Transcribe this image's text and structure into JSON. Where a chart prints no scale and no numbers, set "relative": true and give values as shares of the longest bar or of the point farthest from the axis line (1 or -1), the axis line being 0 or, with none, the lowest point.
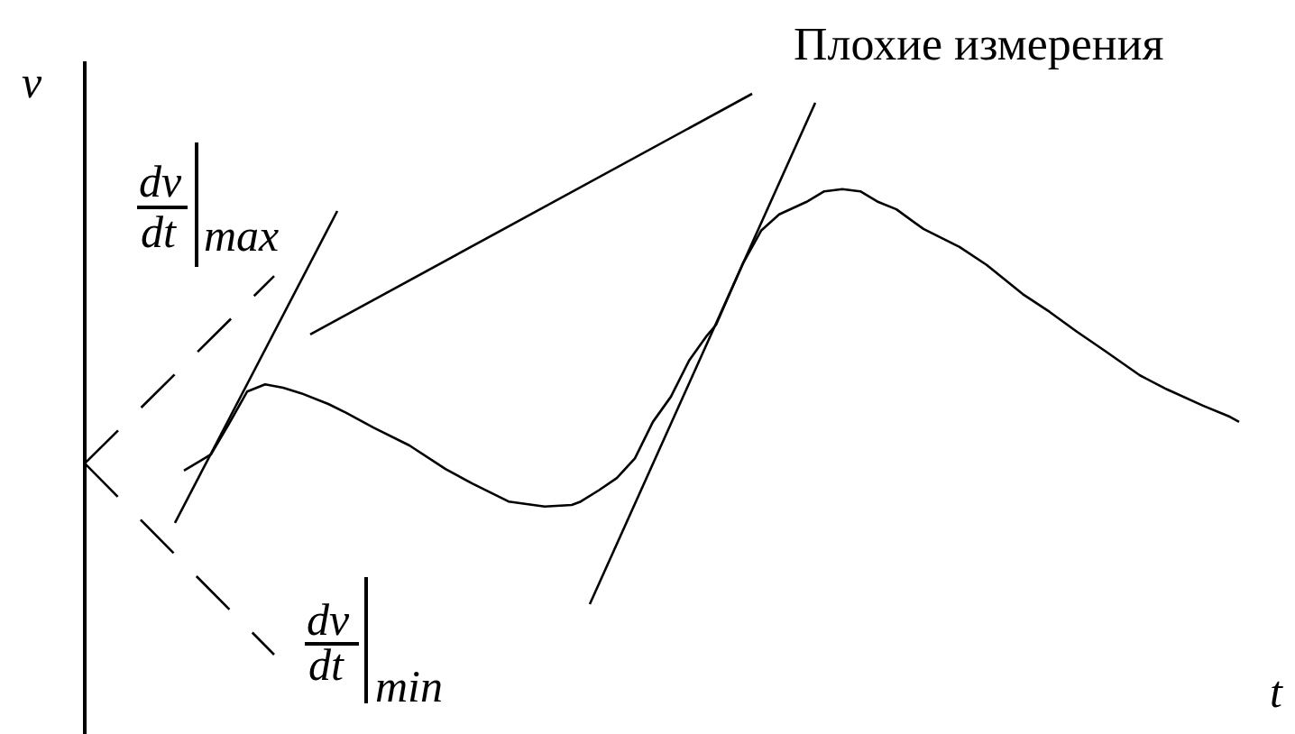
{
  "chart_data": {
    "type": "line",
    "relative": true,
    "xlabel": "t",
    "ylabel": "v",
    "marker": "none",
    "tick_labels": false,
    "categories": [
      null,
      null,
      null,
      null,
      null,
      null,
      null,
      null,
      null,
      null,
      null,
      null,
      null,
      null,
      null,
      null,
      null,
      null,
      null,
      null,
      null,
      null,
      null,
      null,
      null,
      null,
      null,
      null,
      null,
      null,
      null,
      null,
      null,
      null,
      null,
      null,
      null,
      null,
      null,
      null,
      null,
      null,
      null,
      null,
      null,
      null,
      null,
      null,
      null,
      null,
      null,
      null,
      null,
      null,
      null,
      null,
      null,
      null,
      null,
      null,
      null,
      null,
      null,
      null,
      null,
      null,
      null,
      null,
      null,
      null,
      null,
      null,
      null,
      null,
      null,
      null,
      null,
      null,
      null,
      null,
      null,
      null,
      null,
      null,
      null,
      null,
      null,
      null,
      null,
      null,
      null,
      null,
      null,
      null,
      null,
      null,
      null,
      null,
      null,
      null,
      null,
      null,
      null,
      null,
      null,
      null,
      null,
      null,
      null,
      null,
      null,
      null,
      null,
      null,
      null,
      null,
      null,
      null,
      null,
      null,
      null,
      null,
      null,
      null,
      null,
      null,
      null,
      null,
      null
    ],
    "series": [
      {
        "color": "#000000",
        "values": [
          null,
          null,
          null,
          null,
          null,
          null,
          null,
          null,
          null,
          null,
          null,
          0.328,
          null,
          null,
          0.357,
          null,
          0.412,
          null,
          0.469,
          null,
          0.482,
          null,
          0.476,
          null,
          0.466,
          null,
          null,
          0.447,
          null,
          0.431,
          null,
          null,
          0.405,
          null,
          null,
          null,
          0.373,
          null,
          null,
          null,
          0.331,
          null,
          null,
          0.305,
          null,
          null,
          null,
          0.273,
          null,
          null,
          null,
          0.264,
          null,
          null,
          0.267,
          0.273,
          null,
          0.293,
          null,
          0.315,
          null,
          0.35,
          null,
          0.415,
          null,
          0.46,
          null,
          0.524,
          null,
          0.569,
          0.588,
          null,
          null,
          0.698,
          null,
          0.756,
          null,
          0.785,
          null,
          null,
          0.807,
          null,
          0.826,
          null,
          0.83,
          null,
          0.826,
          null,
          0.807,
          null,
          0.794,
          null,
          null,
          0.759,
          null,
          null,
          null,
          0.727,
          null,
          null,
          0.695,
          null,
          null,
          null,
          0.643,
          null,
          null,
          0.611,
          null,
          null,
          0.576,
          null,
          null,
          0.543,
          null,
          null,
          null,
          0.498,
          null,
          null,
          0.473,
          null,
          null,
          null,
          0.444,
          null,
          null,
          0.424,
          0.415
        ]
      },
      {
        "color": "#000000",
        "values": [
          null,
          null,
          null,
          null,
          null,
          null,
          null,
          null,
          null,
          null,
          0.235,
          null,
          null,
          null,
          null,
          null,
          null,
          null,
          null,
          null,
          null,
          null,
          null,
          null,
          null,
          null,
          null,
          null,
          0.791,
          null,
          null,
          null,
          null,
          null,
          null,
          null,
          null,
          null,
          null,
          null,
          null,
          null,
          null,
          null,
          null,
          null,
          null,
          null,
          null,
          null,
          null,
          null,
          null,
          null,
          null,
          null,
          null,
          null,
          null,
          null,
          null,
          null,
          null,
          null,
          null,
          null,
          null,
          null,
          null,
          null,
          null,
          null,
          null,
          null,
          null,
          null,
          null,
          null,
          null,
          null,
          null,
          null,
          null,
          null,
          null,
          null,
          null,
          null,
          null,
          null,
          null,
          null,
          null,
          null,
          null,
          null,
          null,
          null,
          null,
          null,
          null,
          null,
          null,
          null,
          null,
          null,
          null,
          null,
          null,
          null,
          null,
          null,
          null,
          null,
          null,
          null,
          null,
          null,
          null,
          null,
          null,
          null,
          null,
          null,
          null,
          null,
          null,
          null,
          null
        ]
      },
      {
        "color": "#000000",
        "values": [
          null,
          null,
          null,
          null,
          null,
          null,
          null,
          null,
          null,
          null,
          null,
          null,
          null,
          null,
          null,
          null,
          null,
          null,
          null,
          null,
          null,
          null,
          null,
          null,
          null,
          0.571,
          null,
          null,
          null,
          null,
          null,
          null,
          null,
          null,
          null,
          null,
          null,
          null,
          null,
          null,
          null,
          null,
          null,
          null,
          null,
          null,
          null,
          null,
          null,
          null,
          null,
          null,
          null,
          null,
          null,
          null,
          null,
          null,
          null,
          null,
          null,
          null,
          null,
          null,
          null,
          null,
          null,
          null,
          null,
          null,
          null,
          null,
          null,
          null,
          1,
          null,
          null,
          null,
          null,
          null,
          null,
          null,
          null,
          null,
          null,
          null,
          null,
          null,
          null,
          null,
          null,
          null,
          null,
          null,
          null,
          null,
          null,
          null,
          null,
          null,
          null,
          null,
          null,
          null,
          null,
          null,
          null,
          null,
          null,
          null,
          null,
          null,
          null,
          null,
          null,
          null,
          null,
          null,
          null,
          null,
          null,
          null,
          null,
          null,
          null,
          null,
          null,
          null,
          null
        ]
      },
      {
        "color": "#000000",
        "values": [
          null,
          null,
          null,
          null,
          null,
          null,
          null,
          null,
          null,
          null,
          null,
          null,
          null,
          null,
          null,
          null,
          null,
          null,
          null,
          null,
          null,
          null,
          null,
          null,
          null,
          null,
          null,
          null,
          null,
          null,
          null,
          null,
          null,
          null,
          null,
          null,
          null,
          null,
          null,
          null,
          null,
          null,
          null,
          null,
          null,
          null,
          null,
          null,
          null,
          null,
          null,
          null,
          null,
          null,
          null,
          null,
          0.09,
          null,
          null,
          null,
          null,
          null,
          null,
          null,
          null,
          null,
          null,
          null,
          null,
          null,
          null,
          null,
          null,
          null,
          null,
          null,
          null,
          null,
          null,
          null,
          null,
          0.984,
          null,
          null,
          null,
          null,
          null,
          null,
          null,
          null,
          null,
          null,
          null,
          null,
          null,
          null,
          null,
          null,
          null,
          null,
          null,
          null,
          null,
          null,
          null,
          null,
          null,
          null,
          null,
          null,
          null,
          null,
          null,
          null,
          null,
          null,
          null,
          null,
          null,
          null,
          null,
          null,
          null,
          null,
          null,
          null,
          null,
          null,
          null
        ]
      },
      {
        "color": "#000000",
        "line_style": "dashed",
        "values": [
          0.341,
          null,
          null,
          null,
          null,
          null,
          null,
          null,
          null,
          null,
          null,
          null,
          null,
          null,
          null,
          null,
          null,
          null,
          null,
          null,
          null,
          0.675,
          null,
          null,
          null,
          null,
          null,
          null,
          null,
          null,
          null,
          null,
          null,
          null,
          null,
          null,
          null,
          null,
          null,
          null,
          null,
          null,
          null,
          null,
          null,
          null,
          null,
          null,
          null,
          null,
          null,
          null,
          null,
          null,
          null,
          null,
          null,
          null,
          null,
          null,
          null,
          null,
          null,
          null,
          null,
          null,
          null,
          null,
          null,
          null,
          null,
          null,
          null,
          null,
          null,
          null,
          null,
          null,
          null,
          null,
          null,
          null,
          null,
          null,
          null,
          null,
          null,
          null,
          null,
          null,
          null,
          null,
          null,
          null,
          null,
          null,
          null,
          null,
          null,
          null,
          null,
          null,
          null,
          null,
          null,
          null,
          null,
          null,
          null,
          null,
          null,
          null,
          null,
          null,
          null,
          null,
          null,
          null,
          null,
          null,
          null,
          null,
          null,
          null,
          null,
          null,
          null,
          null,
          null
        ]
      },
      {
        "color": "#000000",
        "line_style": "dashed",
        "values": [
          0.341,
          null,
          null,
          null,
          null,
          null,
          null,
          null,
          null,
          null,
          null,
          null,
          null,
          null,
          null,
          null,
          null,
          null,
          null,
          null,
          null,
          0,
          null,
          null,
          null,
          null,
          null,
          null,
          null,
          null,
          null,
          null,
          null,
          null,
          null,
          null,
          null,
          null,
          null,
          null,
          null,
          null,
          null,
          null,
          null,
          null,
          null,
          null,
          null,
          null,
          null,
          null,
          null,
          null,
          null,
          null,
          null,
          null,
          null,
          null,
          null,
          null,
          null,
          null,
          null,
          null,
          null,
          null,
          null,
          null,
          null,
          null,
          null,
          null,
          null,
          null,
          null,
          null,
          null,
          null,
          null,
          null,
          null,
          null,
          null,
          null,
          null,
          null,
          null,
          null,
          null,
          null,
          null,
          null,
          null,
          null,
          null,
          null,
          null,
          null,
          null,
          null,
          null,
          null,
          null,
          null,
          null,
          null,
          null,
          null,
          null,
          null,
          null,
          null,
          null,
          null,
          null,
          null,
          null,
          null,
          null,
          null,
          null,
          null,
          null,
          null,
          null,
          null,
          null
        ]
      }
    ],
    "annotations": [
      "dv",
      "dt",
      "max",
      "dv",
      "dt",
      "min",
      "Плохие измерения"
    ]
  }
}
